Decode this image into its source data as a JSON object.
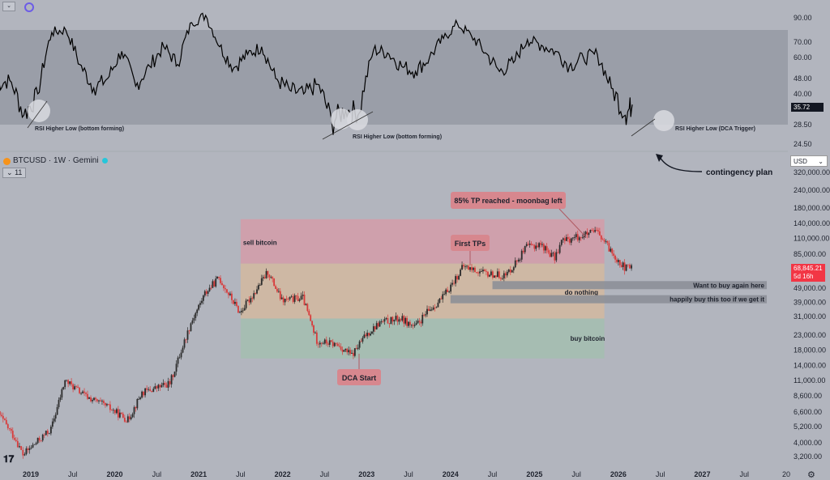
{
  "symbol_header": {
    "symbol": "BTCUSD",
    "interval": "1W",
    "exchange": "Gemini",
    "separator": " · ",
    "indicator_count": "11"
  },
  "currency": {
    "label": "USD",
    "caret": "⌄"
  },
  "top_control": {
    "caret": "⌄"
  },
  "rsi_value": "35.72",
  "price_box": {
    "price": "68,845.21",
    "countdown": "5d 16h"
  },
  "colors": {
    "background": "#b2b5be",
    "rsi_line": "#000000",
    "rsi_band": "#9a9ea8",
    "candle_up": "#2b2b2b",
    "candle_down": "#d83b3b",
    "sell_zone": "#d69ba7",
    "hold_zone": "#d4b99e",
    "buy_zone": "#a3bfaf",
    "callout": "#d7878e"
  },
  "chart_data": [
    {
      "type": "line",
      "title": "",
      "ylim": [
        20,
        100
      ],
      "band": [
        28.5,
        80
      ],
      "y_ticks": [
        "90.00",
        "70.00",
        "60.00",
        "48.00",
        "40.00",
        "28.50",
        "24.50"
      ],
      "y_tick_values": [
        90,
        70,
        60,
        48,
        40,
        28.5,
        24.5
      ],
      "series": [
        {
          "x": [
            "2018-08",
            "2018-10",
            "2018-12",
            "2019-02",
            "2019-04",
            "2019-06",
            "2019-08",
            "2019-10",
            "2019-12",
            "2020-02",
            "2020-04",
            "2020-06",
            "2020-08",
            "2020-10",
            "2020-12",
            "2021-02",
            "2021-04",
            "2021-06",
            "2021-08",
            "2021-10",
            "2021-12",
            "2022-02",
            "2022-04",
            "2022-06",
            "2022-08",
            "2022-10",
            "2022-12",
            "2023-02",
            "2023-04",
            "2023-06",
            "2023-08",
            "2023-10",
            "2023-12",
            "2024-02",
            "2024-04",
            "2024-06",
            "2024-08",
            "2024-10",
            "2024-12",
            "2025-02",
            "2025-04",
            "2025-06",
            "2025-08",
            "2025-10",
            "2025-12",
            "2026-02",
            "2026-03"
          ],
          "values": [
            45,
            47,
            32,
            40,
            78,
            80,
            56,
            43,
            48,
            64,
            44,
            55,
            67,
            56,
            86,
            92,
            67,
            54,
            62,
            67,
            48,
            42,
            40,
            45,
            30,
            34,
            33,
            65,
            63,
            55,
            52,
            60,
            73,
            85,
            75,
            63,
            52,
            57,
            72,
            68,
            64,
            55,
            60,
            62,
            43,
            32,
            36
          ]
        }
      ],
      "annotations": [
        "RSI Higher Low (bottom forming)",
        "RSI Higher Low (bottom forming)",
        "RSI Higher Low (DCA Trigger)"
      ]
    },
    {
      "type": "candlestick",
      "title": "",
      "scale": "log",
      "ylim": [
        2900,
        400000
      ],
      "x_ticks": [
        "2019",
        "Jul",
        "2020",
        "Jul",
        "2021",
        "Jul",
        "2022",
        "Jul",
        "2023",
        "Jul",
        "2024",
        "Jul",
        "2025",
        "Jul",
        "2026",
        "Jul",
        "2027",
        "Jul",
        "20"
      ],
      "x_tick_dates": [
        "2019-01",
        "2019-07",
        "2020-01",
        "2020-07",
        "2021-01",
        "2021-07",
        "2022-01",
        "2022-07",
        "2023-01",
        "2023-07",
        "2024-01",
        "2024-07",
        "2025-01",
        "2025-07",
        "2026-01",
        "2026-07",
        "2027-01",
        "2027-07",
        "2028-01"
      ],
      "y_ticks": [
        "320,000.00",
        "240,000.00",
        "180,000.00",
        "140,000.00",
        "110,000.00",
        "85,000.00",
        "49,000.00",
        "39,000.00",
        "31,000.00",
        "23,000.00",
        "18,000.00",
        "14,000.00",
        "11,000.00",
        "8,600.00",
        "6,600.00",
        "5,200.00",
        "4,000.00",
        "3,200.00"
      ],
      "y_tick_values": [
        320000,
        240000,
        180000,
        140000,
        110000,
        85000,
        49000,
        39000,
        31000,
        23000,
        18000,
        14000,
        11000,
        8600,
        6600,
        5200,
        4000,
        3200
      ],
      "price_path": {
        "x": [
          "2018-08",
          "2018-11",
          "2018-12",
          "2019-04",
          "2019-06",
          "2019-09",
          "2019-12",
          "2020-03",
          "2020-05",
          "2020-09",
          "2020-12",
          "2021-02",
          "2021-04",
          "2021-07",
          "2021-09",
          "2021-11",
          "2022-01",
          "2022-04",
          "2022-06",
          "2022-09",
          "2022-11",
          "2023-01",
          "2023-03",
          "2023-06",
          "2023-08",
          "2023-10",
          "2023-12",
          "2024-03",
          "2024-06",
          "2024-09",
          "2024-12",
          "2025-02",
          "2025-04",
          "2025-05",
          "2025-08",
          "2025-10",
          "2025-12",
          "2026-02",
          "2026-03"
        ],
        "values": [
          7000,
          4200,
          3300,
          5000,
          11000,
          8500,
          7200,
          5800,
          9000,
          10500,
          28000,
          45000,
          58000,
          33000,
          45000,
          64000,
          40000,
          42000,
          21000,
          19500,
          16500,
          23000,
          28000,
          30000,
          26000,
          34000,
          42000,
          70000,
          62000,
          60000,
          95000,
          100000,
          80000,
          105000,
          115000,
          122000,
          90000,
          68000,
          68845
        ]
      },
      "zones": [
        {
          "label": "sell bitcoin",
          "from": 73000,
          "to": 150000
        },
        {
          "label": "",
          "from": 30000,
          "to": 73000
        },
        {
          "label": "buy bitcoin",
          "from": 15700,
          "to": 30000
        }
      ],
      "levels": [
        {
          "label": "Want to buy again here",
          "price": 51500
        },
        {
          "label": "do nothing",
          "price": 46000
        },
        {
          "label": "happily buy this too if we get it",
          "price": 41000
        }
      ],
      "callouts": [
        "85% TP reached - moonbag left",
        "First TPs",
        "DCA Start"
      ],
      "contingency_label": "contingency plan"
    }
  ]
}
